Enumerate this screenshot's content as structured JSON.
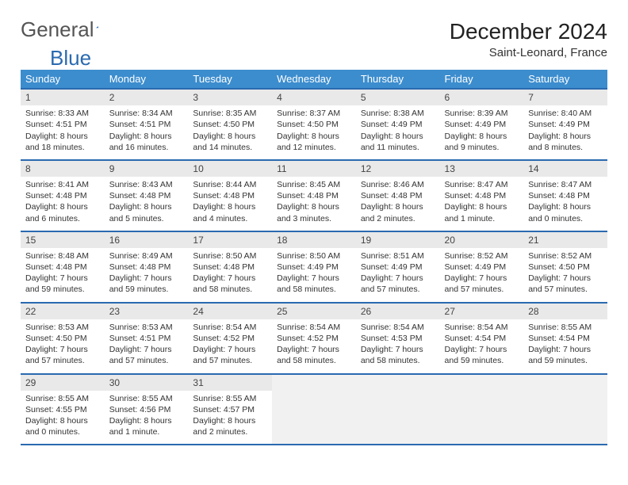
{
  "brand": {
    "part1": "General",
    "part2": "Blue",
    "triangle_color": "#2a6ab0"
  },
  "header": {
    "month": "December 2024",
    "location": "Saint-Leonard, France"
  },
  "colors": {
    "header_bg": "#3c8dce",
    "rule": "#2a6ab0",
    "daynum_bg": "#e9e9e9",
    "empty_bg": "#f1f1f1"
  },
  "weekdays": [
    "Sunday",
    "Monday",
    "Tuesday",
    "Wednesday",
    "Thursday",
    "Friday",
    "Saturday"
  ],
  "weeks": [
    [
      {
        "n": "1",
        "sr": "Sunrise: 8:33 AM",
        "ss": "Sunset: 4:51 PM",
        "d1": "Daylight: 8 hours",
        "d2": "and 18 minutes."
      },
      {
        "n": "2",
        "sr": "Sunrise: 8:34 AM",
        "ss": "Sunset: 4:51 PM",
        "d1": "Daylight: 8 hours",
        "d2": "and 16 minutes."
      },
      {
        "n": "3",
        "sr": "Sunrise: 8:35 AM",
        "ss": "Sunset: 4:50 PM",
        "d1": "Daylight: 8 hours",
        "d2": "and 14 minutes."
      },
      {
        "n": "4",
        "sr": "Sunrise: 8:37 AM",
        "ss": "Sunset: 4:50 PM",
        "d1": "Daylight: 8 hours",
        "d2": "and 12 minutes."
      },
      {
        "n": "5",
        "sr": "Sunrise: 8:38 AM",
        "ss": "Sunset: 4:49 PM",
        "d1": "Daylight: 8 hours",
        "d2": "and 11 minutes."
      },
      {
        "n": "6",
        "sr": "Sunrise: 8:39 AM",
        "ss": "Sunset: 4:49 PM",
        "d1": "Daylight: 8 hours",
        "d2": "and 9 minutes."
      },
      {
        "n": "7",
        "sr": "Sunrise: 8:40 AM",
        "ss": "Sunset: 4:49 PM",
        "d1": "Daylight: 8 hours",
        "d2": "and 8 minutes."
      }
    ],
    [
      {
        "n": "8",
        "sr": "Sunrise: 8:41 AM",
        "ss": "Sunset: 4:48 PM",
        "d1": "Daylight: 8 hours",
        "d2": "and 6 minutes."
      },
      {
        "n": "9",
        "sr": "Sunrise: 8:43 AM",
        "ss": "Sunset: 4:48 PM",
        "d1": "Daylight: 8 hours",
        "d2": "and 5 minutes."
      },
      {
        "n": "10",
        "sr": "Sunrise: 8:44 AM",
        "ss": "Sunset: 4:48 PM",
        "d1": "Daylight: 8 hours",
        "d2": "and 4 minutes."
      },
      {
        "n": "11",
        "sr": "Sunrise: 8:45 AM",
        "ss": "Sunset: 4:48 PM",
        "d1": "Daylight: 8 hours",
        "d2": "and 3 minutes."
      },
      {
        "n": "12",
        "sr": "Sunrise: 8:46 AM",
        "ss": "Sunset: 4:48 PM",
        "d1": "Daylight: 8 hours",
        "d2": "and 2 minutes."
      },
      {
        "n": "13",
        "sr": "Sunrise: 8:47 AM",
        "ss": "Sunset: 4:48 PM",
        "d1": "Daylight: 8 hours",
        "d2": "and 1 minute."
      },
      {
        "n": "14",
        "sr": "Sunrise: 8:47 AM",
        "ss": "Sunset: 4:48 PM",
        "d1": "Daylight: 8 hours",
        "d2": "and 0 minutes."
      }
    ],
    [
      {
        "n": "15",
        "sr": "Sunrise: 8:48 AM",
        "ss": "Sunset: 4:48 PM",
        "d1": "Daylight: 7 hours",
        "d2": "and 59 minutes."
      },
      {
        "n": "16",
        "sr": "Sunrise: 8:49 AM",
        "ss": "Sunset: 4:48 PM",
        "d1": "Daylight: 7 hours",
        "d2": "and 59 minutes."
      },
      {
        "n": "17",
        "sr": "Sunrise: 8:50 AM",
        "ss": "Sunset: 4:48 PM",
        "d1": "Daylight: 7 hours",
        "d2": "and 58 minutes."
      },
      {
        "n": "18",
        "sr": "Sunrise: 8:50 AM",
        "ss": "Sunset: 4:49 PM",
        "d1": "Daylight: 7 hours",
        "d2": "and 58 minutes."
      },
      {
        "n": "19",
        "sr": "Sunrise: 8:51 AM",
        "ss": "Sunset: 4:49 PM",
        "d1": "Daylight: 7 hours",
        "d2": "and 57 minutes."
      },
      {
        "n": "20",
        "sr": "Sunrise: 8:52 AM",
        "ss": "Sunset: 4:49 PM",
        "d1": "Daylight: 7 hours",
        "d2": "and 57 minutes."
      },
      {
        "n": "21",
        "sr": "Sunrise: 8:52 AM",
        "ss": "Sunset: 4:50 PM",
        "d1": "Daylight: 7 hours",
        "d2": "and 57 minutes."
      }
    ],
    [
      {
        "n": "22",
        "sr": "Sunrise: 8:53 AM",
        "ss": "Sunset: 4:50 PM",
        "d1": "Daylight: 7 hours",
        "d2": "and 57 minutes."
      },
      {
        "n": "23",
        "sr": "Sunrise: 8:53 AM",
        "ss": "Sunset: 4:51 PM",
        "d1": "Daylight: 7 hours",
        "d2": "and 57 minutes."
      },
      {
        "n": "24",
        "sr": "Sunrise: 8:54 AM",
        "ss": "Sunset: 4:52 PM",
        "d1": "Daylight: 7 hours",
        "d2": "and 57 minutes."
      },
      {
        "n": "25",
        "sr": "Sunrise: 8:54 AM",
        "ss": "Sunset: 4:52 PM",
        "d1": "Daylight: 7 hours",
        "d2": "and 58 minutes."
      },
      {
        "n": "26",
        "sr": "Sunrise: 8:54 AM",
        "ss": "Sunset: 4:53 PM",
        "d1": "Daylight: 7 hours",
        "d2": "and 58 minutes."
      },
      {
        "n": "27",
        "sr": "Sunrise: 8:54 AM",
        "ss": "Sunset: 4:54 PM",
        "d1": "Daylight: 7 hours",
        "d2": "and 59 minutes."
      },
      {
        "n": "28",
        "sr": "Sunrise: 8:55 AM",
        "ss": "Sunset: 4:54 PM",
        "d1": "Daylight: 7 hours",
        "d2": "and 59 minutes."
      }
    ],
    [
      {
        "n": "29",
        "sr": "Sunrise: 8:55 AM",
        "ss": "Sunset: 4:55 PM",
        "d1": "Daylight: 8 hours",
        "d2": "and 0 minutes."
      },
      {
        "n": "30",
        "sr": "Sunrise: 8:55 AM",
        "ss": "Sunset: 4:56 PM",
        "d1": "Daylight: 8 hours",
        "d2": "and 1 minute."
      },
      {
        "n": "31",
        "sr": "Sunrise: 8:55 AM",
        "ss": "Sunset: 4:57 PM",
        "d1": "Daylight: 8 hours",
        "d2": "and 2 minutes."
      },
      null,
      null,
      null,
      null
    ]
  ]
}
